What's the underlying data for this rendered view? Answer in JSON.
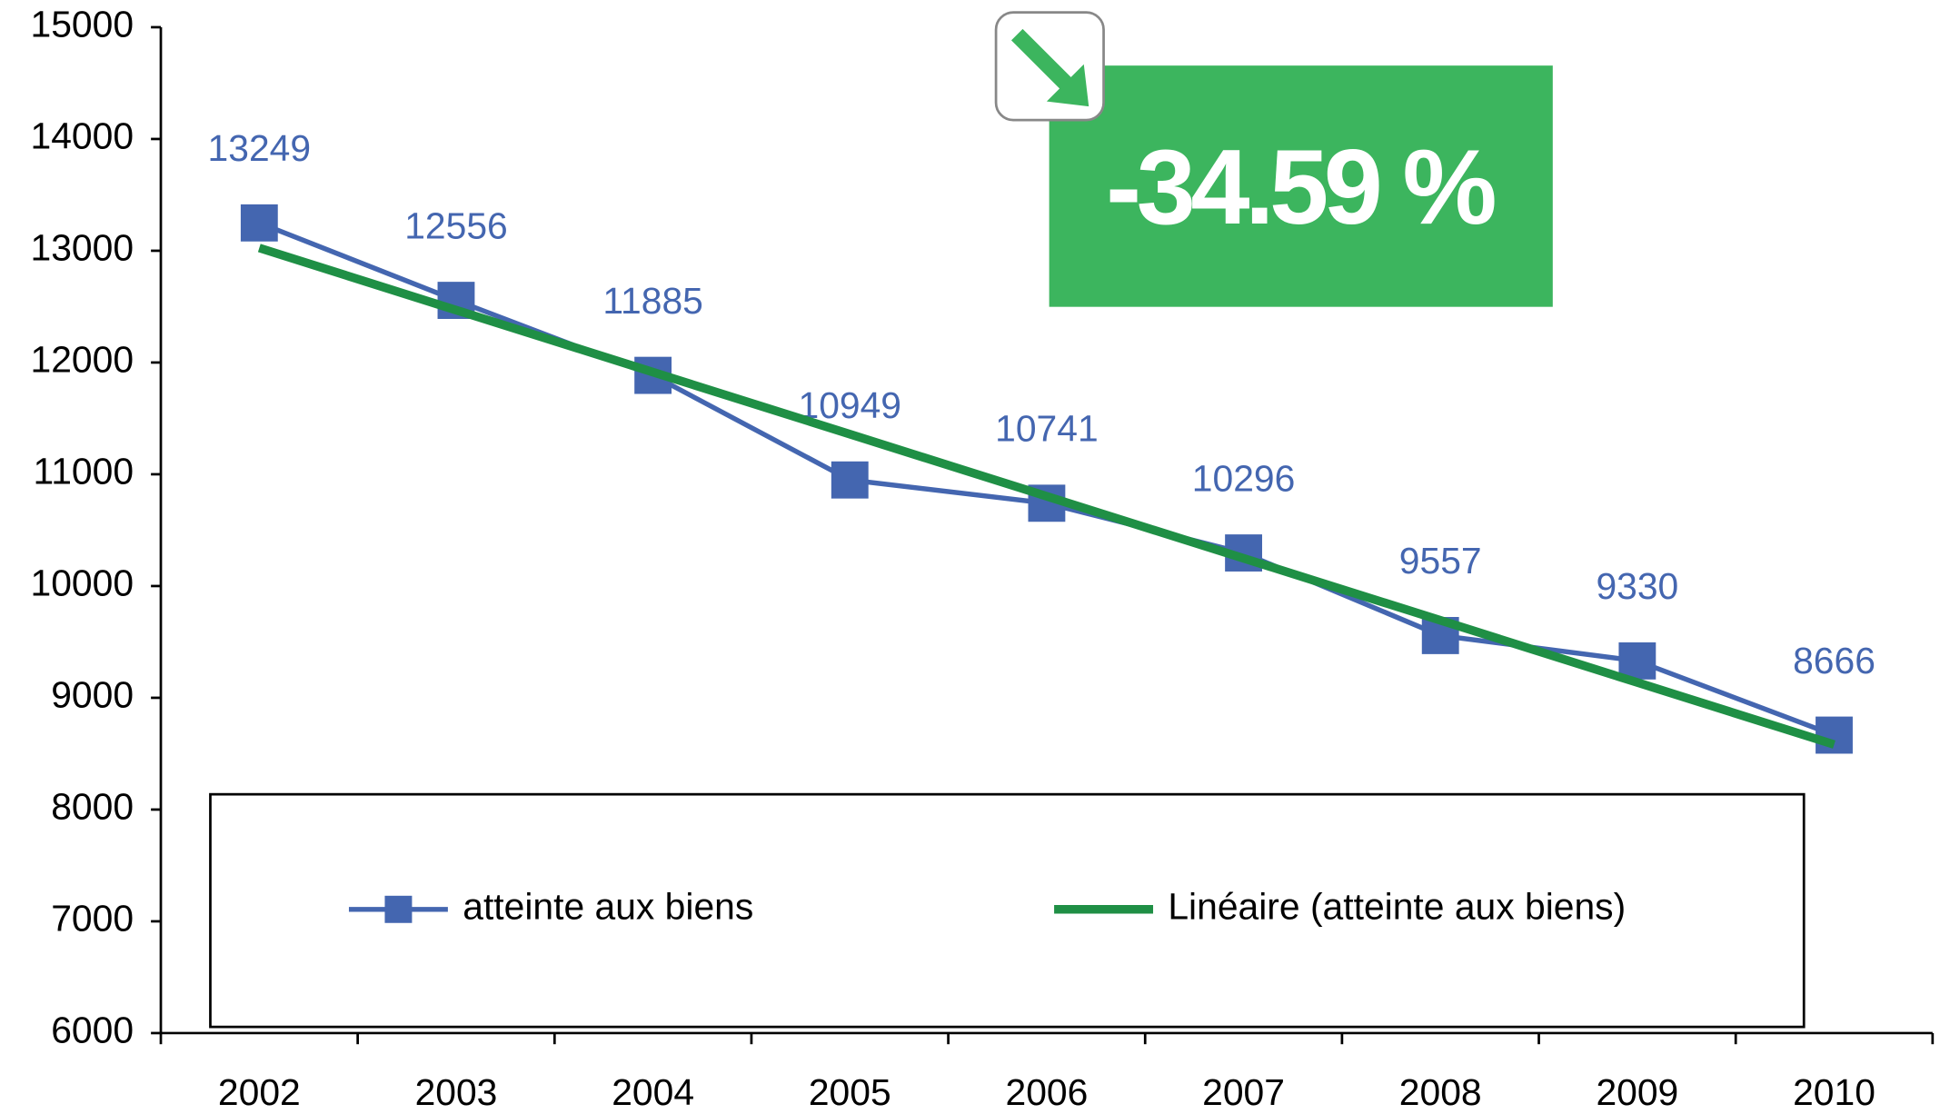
{
  "chart_data": {
    "type": "line",
    "annotation": "-34.59 %",
    "categories": [
      "2002",
      "2003",
      "2004",
      "2005",
      "2006",
      "2007",
      "2008",
      "2009",
      "2010"
    ],
    "series": [
      {
        "name": "atteinte aux biens",
        "color": "#4466b0",
        "marker": "square",
        "data_labels": true,
        "values": [
          13249,
          12556,
          11885,
          10949,
          10741,
          10296,
          9557,
          9330,
          8666
        ]
      },
      {
        "name": "Linéaire (atteinte aux biens)",
        "color": "#1f8f45",
        "marker": "none",
        "data_labels": false,
        "values": [
          13025,
          12469,
          11914,
          11359,
          10803,
          10248,
          9693,
          9137,
          8582
        ]
      }
    ],
    "ylim": [
      6000,
      15000
    ],
    "yticks": [
      6000,
      7000,
      8000,
      9000,
      10000,
      11000,
      12000,
      13000,
      14000,
      15000
    ],
    "grid": false
  }
}
